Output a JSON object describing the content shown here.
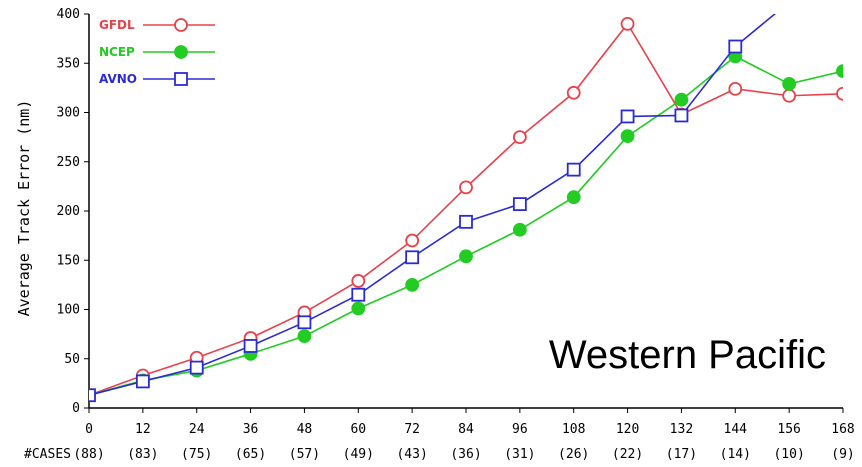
{
  "chart_data": {
    "type": "line",
    "title": "",
    "xlabel": "",
    "ylabel": "Average Track Error (nm)",
    "x": [
      0,
      12,
      24,
      36,
      48,
      60,
      72,
      84,
      96,
      108,
      120,
      132,
      144,
      156,
      168
    ],
    "x_tick_labels": [
      "0",
      "12",
      "24",
      "36",
      "48",
      "60",
      "72",
      "84",
      "96",
      "108",
      "120",
      "132",
      "144",
      "156",
      "168"
    ],
    "cases_label": "#CASES",
    "cases": [
      "(88)",
      "(83)",
      "(75)",
      "(65)",
      "(57)",
      "(49)",
      "(43)",
      "(36)",
      "(31)",
      "(26)",
      "(22)",
      "(17)",
      "(14)",
      "(10)",
      "(9)"
    ],
    "xlim": [
      0,
      168
    ],
    "ylim": [
      0,
      400
    ],
    "y_ticks": [
      0,
      50,
      100,
      150,
      200,
      250,
      300,
      350,
      400
    ],
    "grid": false,
    "legend_position": "top-left",
    "annotation": "Western Pacific",
    "series": [
      {
        "name": "GFDL",
        "color": "#e8424c",
        "marker": "open-circle",
        "values": [
          13,
          33,
          51,
          71,
          97,
          129,
          170,
          224,
          275,
          320,
          390,
          298,
          324,
          317,
          319
        ]
      },
      {
        "name": "NCEP",
        "color": "#22cc22",
        "marker": "filled-circle",
        "values": [
          13,
          28,
          38,
          55,
          73,
          101,
          125,
          154,
          181,
          214,
          276,
          313,
          357,
          329,
          342
        ]
      },
      {
        "name": "AVNO",
        "color": "#2b2bd6",
        "marker": "open-square",
        "values": [
          13,
          27,
          41,
          63,
          87,
          115,
          153,
          189,
          207,
          242,
          296,
          297,
          367,
          412,
          null
        ]
      }
    ]
  }
}
